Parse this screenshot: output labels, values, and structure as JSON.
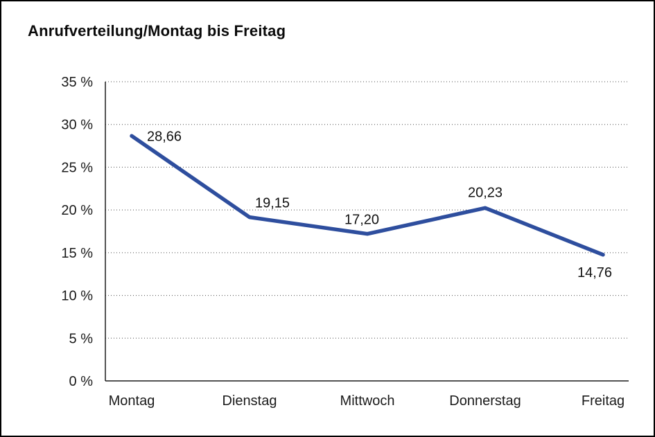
{
  "title": "Anrufverteilung/Montag bis Freitag",
  "colors": {
    "line": "#2e4e9e",
    "axis": "#1a1a1a",
    "background": "#ffffff",
    "border": "#000000"
  },
  "chart_data": {
    "type": "line",
    "title": "Anrufverteilung/Montag bis Freitag",
    "categories": [
      "Montag",
      "Dienstag",
      "Mittwoch",
      "Donnerstag",
      "Freitag"
    ],
    "values": [
      28.66,
      19.15,
      17.2,
      20.23,
      14.76
    ],
    "point_labels": [
      "28,66",
      "19,15",
      "17,20",
      "20,23",
      "14,76"
    ],
    "xlabel": "",
    "ylabel": "",
    "ylim": [
      0,
      35
    ],
    "ytick_step": 5,
    "ytick_suffix": " %",
    "ytick_labels": [
      "0 %",
      "5 %",
      "10 %",
      "15 %",
      "20 %",
      "25 %",
      "30 %",
      "35 %"
    ],
    "grid": "horizontal-dotted",
    "legend": "none",
    "line_color": "#2e4e9e"
  }
}
